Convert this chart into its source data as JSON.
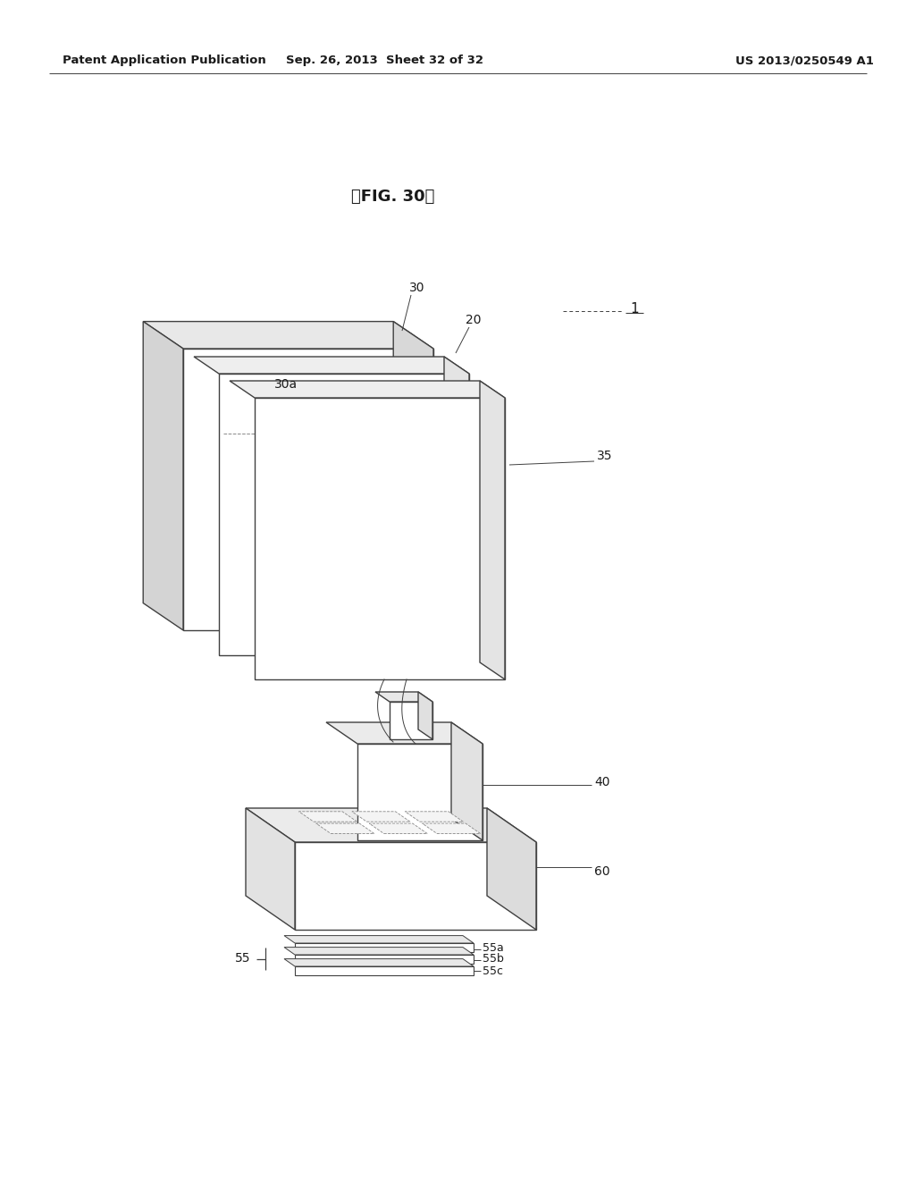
{
  "header_left": "Patent Application Publication",
  "header_center": "Sep. 26, 2013  Sheet 32 of 32",
  "header_right": "US 2013/0250549 A1",
  "fig_title": "【FIG. 30】",
  "bg_color": "#ffffff",
  "line_color": "#404040",
  "label_color": "#1a1a1a",
  "lw_main": 1.0,
  "lw_thin": 0.7
}
